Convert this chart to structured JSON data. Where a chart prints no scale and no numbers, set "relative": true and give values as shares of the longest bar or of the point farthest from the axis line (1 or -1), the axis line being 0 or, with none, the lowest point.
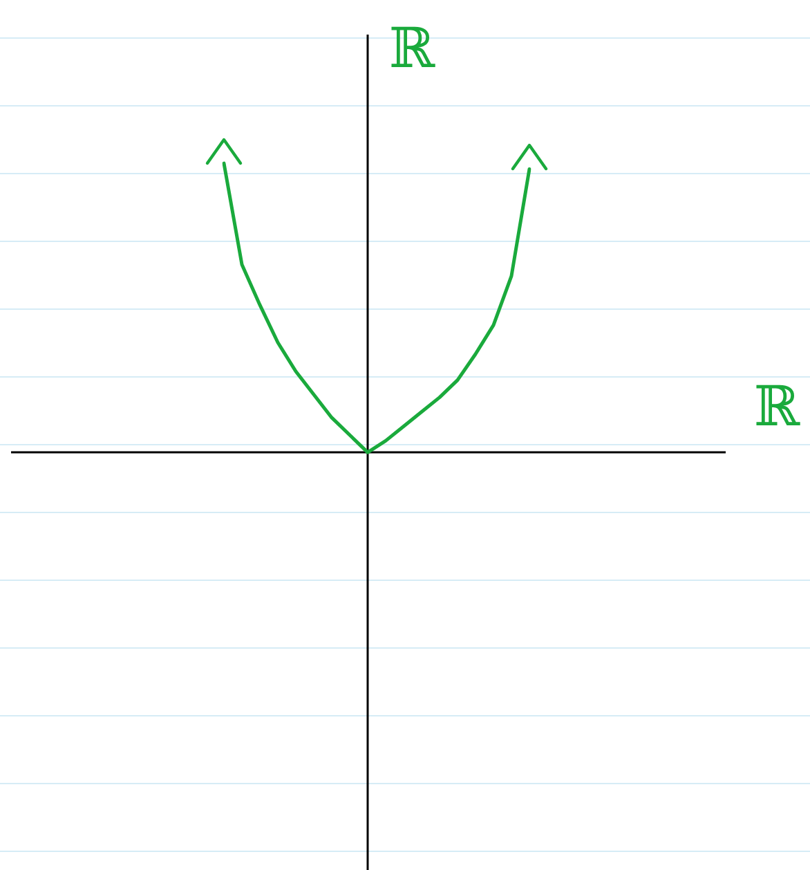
{
  "chart_data": {
    "type": "line",
    "relative": true,
    "xlabel": "ℝ",
    "ylabel": "ℝ",
    "categories": [
      null,
      null,
      null,
      null,
      null,
      null,
      null,
      null,
      null,
      null,
      null,
      null,
      null,
      null,
      null,
      null,
      null,
      null
    ],
    "series": [
      {
        "color": "#1aaa3c",
        "values": [
          1,
          0.65,
          0.51,
          0.38,
          0.28,
          0.2,
          0.12,
          0.06,
          0,
          0.04,
          0.09,
          0.14,
          0.19,
          0.25,
          0.34,
          0.44,
          0.61,
          0.98
        ]
      }
    ],
    "marker": "none",
    "line_style": "solid",
    "legend": false
  }
}
